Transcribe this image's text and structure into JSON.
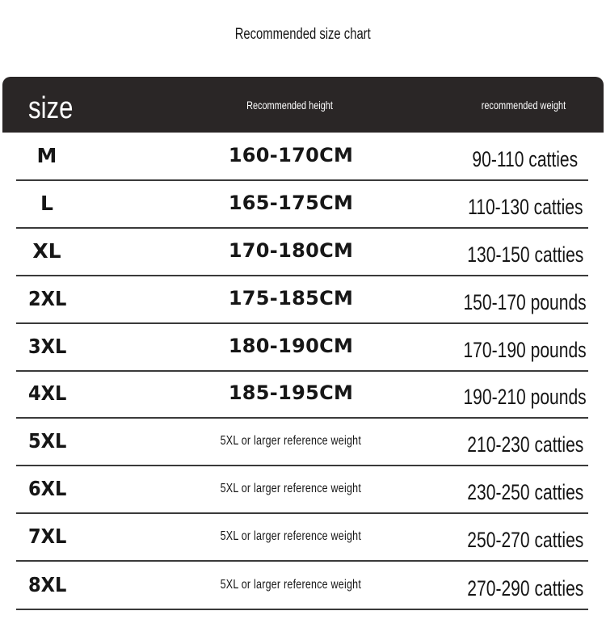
{
  "title": "Recommended size chart",
  "header": {
    "size": "size",
    "height": "Recommended height",
    "weight": "recommended weight"
  },
  "rows": [
    {
      "size": "M",
      "height": "160-170CM",
      "weight": "90-110 catties"
    },
    {
      "size": "L",
      "height": "165-175CM",
      "weight": "110-130 catties"
    },
    {
      "size": "XL",
      "height": "170-180CM",
      "weight": "130-150 catties"
    },
    {
      "size": "2XL",
      "height": "175-185CM",
      "weight": "150-170 pounds"
    },
    {
      "size": "3XL",
      "height": "180-190CM",
      "weight": "170-190 pounds"
    },
    {
      "size": "4XL",
      "height": "185-195CM",
      "weight": "190-210 pounds"
    },
    {
      "size": "5XL",
      "height": "5XL or larger reference weight",
      "weight": "210-230 catties"
    },
    {
      "size": "6XL",
      "height": "5XL or larger reference weight",
      "weight": "230-250 catties"
    },
    {
      "size": "7XL",
      "height": "5XL or larger reference weight",
      "weight": "250-270 catties"
    },
    {
      "size": "8XL",
      "height": "5XL or larger reference weight",
      "weight": "270-290 catties"
    }
  ],
  "colors": {
    "header_bg": "#2a2626",
    "header_text": "#ffffff",
    "divider": "#3a3a3a"
  }
}
